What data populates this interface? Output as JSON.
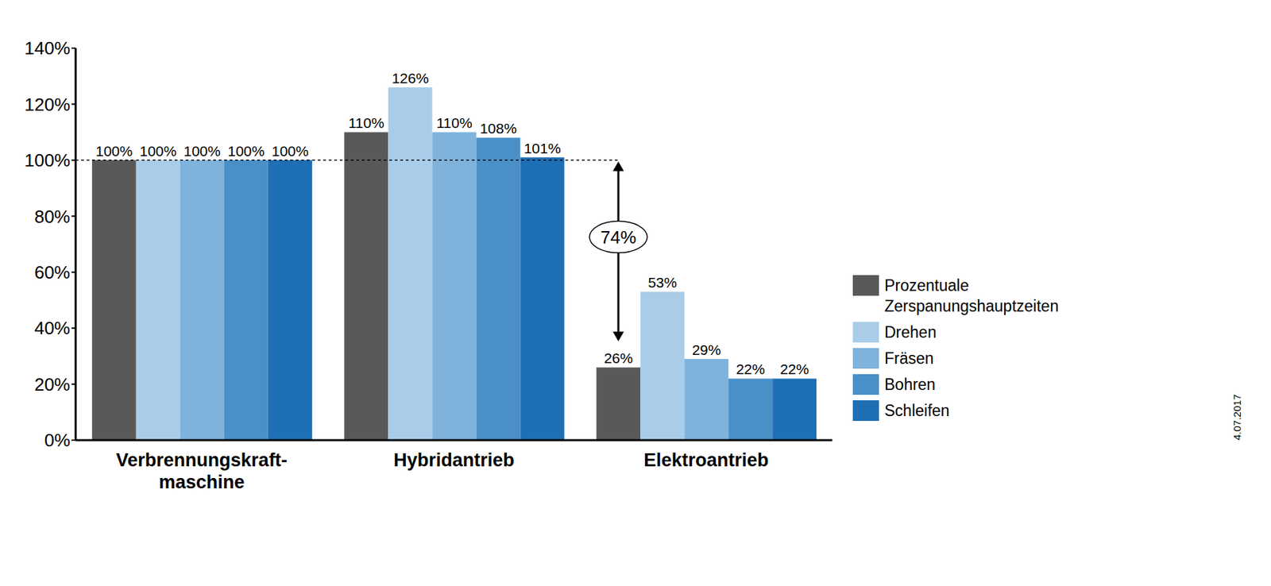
{
  "chart_data": {
    "type": "bar",
    "categories": [
      "Verbrennungskraft-maschine",
      "Hybridantrieb",
      "Elektroantrieb"
    ],
    "series": [
      {
        "name": "Prozentuale Zerspanungshauptzeiten",
        "color": "#595959",
        "values": [
          100,
          110,
          26
        ],
        "value_labels": [
          "100%",
          "110%",
          "26%"
        ]
      },
      {
        "name": "Drehen",
        "color": "#a9cde9",
        "values": [
          100,
          126,
          53
        ],
        "value_labels": [
          "100%",
          "126%",
          "53%"
        ]
      },
      {
        "name": "Fräsen",
        "color": "#7fb3dc",
        "values": [
          100,
          110,
          29
        ],
        "value_labels": [
          "100%",
          "110%",
          "29%"
        ]
      },
      {
        "name": "Bohren",
        "color": "#4a90c8",
        "values": [
          100,
          108,
          22
        ],
        "value_labels": [
          "100%",
          "108%",
          "22%"
        ]
      },
      {
        "name": "Schleifen",
        "color": "#1f6fb5",
        "values": [
          100,
          101,
          22
        ],
        "value_labels": [
          "100%",
          "101%",
          "22%"
        ]
      }
    ],
    "ylim": [
      0,
      140
    ],
    "yticks": [
      {
        "value": 0,
        "label": "0%"
      },
      {
        "value": 20,
        "label": "20%"
      },
      {
        "value": 40,
        "label": "40%"
      },
      {
        "value": 60,
        "label": "60%"
      },
      {
        "value": 80,
        "label": "80%"
      },
      {
        "value": 100,
        "label": "100%"
      },
      {
        "value": 120,
        "label": "120%"
      },
      {
        "value": 140,
        "label": "140%"
      }
    ],
    "grid": false,
    "legend": "right",
    "data_labels": true,
    "annotations": [
      {
        "text": "74%",
        "x": "Elektroantrieb",
        "y_from": 100,
        "y_to": 26
      },
      {
        "text": "4.07.2017"
      }
    ]
  }
}
